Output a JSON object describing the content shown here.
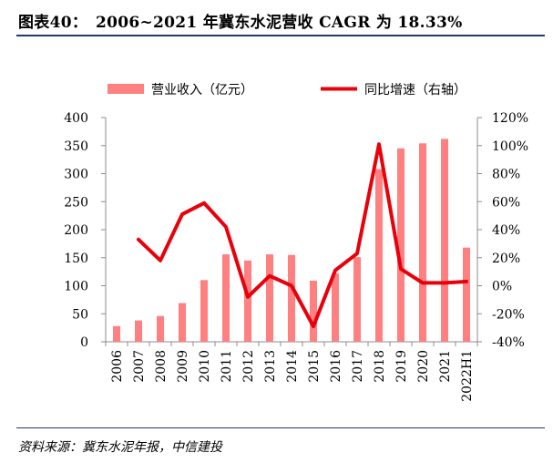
{
  "title": "图表40：　2006~2021 年冀东水泥营收 CAGR 为 18.33%",
  "source": "资料来源：冀东水泥年报，中信建投",
  "colors": {
    "bar": "#ff8080",
    "line": "#e8000b",
    "rule": "#1f3a6b"
  },
  "chart_data": {
    "type": "bar",
    "categories": [
      "2006",
      "2007",
      "2008",
      "2009",
      "2010",
      "2011",
      "2012",
      "2013",
      "2014",
      "2015",
      "2016",
      "2017",
      "2018",
      "2019",
      "2020",
      "2021",
      "2022H1"
    ],
    "series": [
      {
        "name": "营业收入（亿元）",
        "type": "bar",
        "axis": "left",
        "values": [
          28,
          38,
          46,
          69,
          110,
          156,
          145,
          156,
          155,
          109,
          122,
          151,
          308,
          345,
          354,
          362,
          168
        ]
      },
      {
        "name": "同比增速（右轴）",
        "type": "line",
        "axis": "right",
        "values": [
          null,
          33,
          18,
          51,
          59,
          42,
          -8,
          7,
          0,
          -29,
          11,
          23,
          101,
          12,
          2,
          2,
          3
        ]
      }
    ],
    "y_left": {
      "min": 0,
      "max": 400,
      "step": 50,
      "ticks": [
        "0",
        "50",
        "100",
        "150",
        "200",
        "250",
        "300",
        "350",
        "400"
      ]
    },
    "y_right": {
      "min": -40,
      "max": 120,
      "step": 20,
      "ticks": [
        "-40%",
        "-20%",
        "0%",
        "20%",
        "40%",
        "60%",
        "80%",
        "100%",
        "120%"
      ]
    },
    "legend_position": "top",
    "grid": false
  }
}
